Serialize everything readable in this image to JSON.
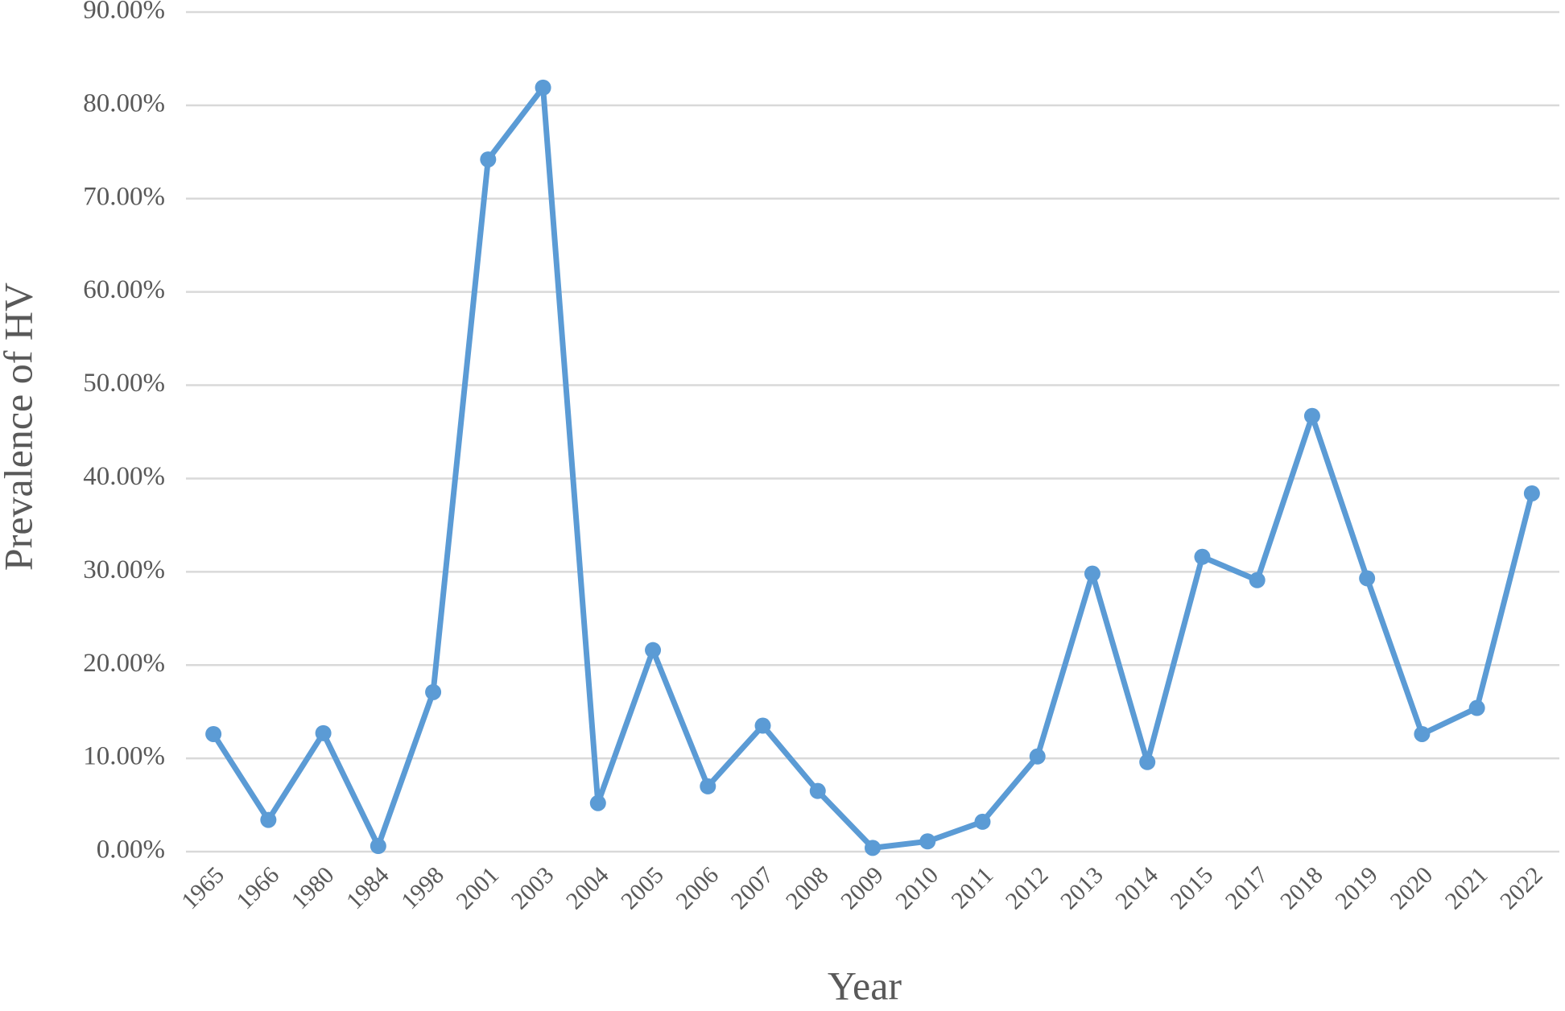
{
  "chart_data": {
    "type": "line",
    "x_label": "Year",
    "y_label": "Prevalence of HV",
    "categories": [
      "1965",
      "1966",
      "1980",
      "1984",
      "1998",
      "2001",
      "2003",
      "2004",
      "2005",
      "2006",
      "2007",
      "2008",
      "2009",
      "2010",
      "2011",
      "2012",
      "2013",
      "2014",
      "2015",
      "2017",
      "2018",
      "2019",
      "2020",
      "2021",
      "2022"
    ],
    "series": [
      {
        "name": "Prevalence of HV",
        "color": "#5b9bd5",
        "values": [
          12.6,
          3.4,
          12.7,
          0.6,
          17.1,
          74.2,
          81.9,
          5.2,
          21.6,
          7.0,
          13.5,
          6.5,
          0.4,
          1.1,
          3.2,
          10.2,
          29.8,
          9.6,
          31.6,
          29.1,
          46.7,
          29.3,
          12.6,
          15.4,
          38.4
        ]
      }
    ],
    "ylim": [
      0,
      90
    ],
    "yticks": [
      {
        "value": 0,
        "label": "0.00%"
      },
      {
        "value": 10,
        "label": "10.00%"
      },
      {
        "value": 20,
        "label": "20.00%"
      },
      {
        "value": 30,
        "label": "30.00%"
      },
      {
        "value": 40,
        "label": "40.00%"
      },
      {
        "value": 50,
        "label": "50.00%"
      },
      {
        "value": 60,
        "label": "60.00%"
      },
      {
        "value": 70,
        "label": "70.00%"
      },
      {
        "value": 80,
        "label": "80.00%"
      },
      {
        "value": 90,
        "label": "90.00%"
      }
    ],
    "grid": true
  }
}
